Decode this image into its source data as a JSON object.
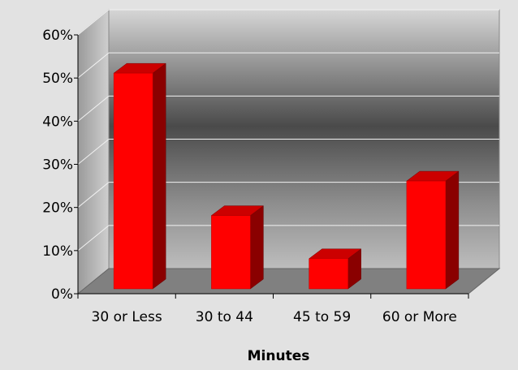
{
  "chart_data": {
    "type": "bar",
    "title": "",
    "xlabel": "Minutes",
    "ylabel": "",
    "categories": [
      "30 or Less",
      "30 to 44",
      "45 to 59",
      "60 or More"
    ],
    "values": [
      50,
      17,
      7,
      25
    ],
    "value_unit": "%",
    "ylim": [
      0,
      60
    ],
    "yticks": [
      "0%",
      "10%",
      "20%",
      "30%",
      "40%",
      "50%",
      "60%"
    ],
    "grid": true,
    "legend": "none",
    "bar_color": "#ff0000",
    "bar_side_color": "#8a0000",
    "bar_top_color": "#cc0000"
  }
}
